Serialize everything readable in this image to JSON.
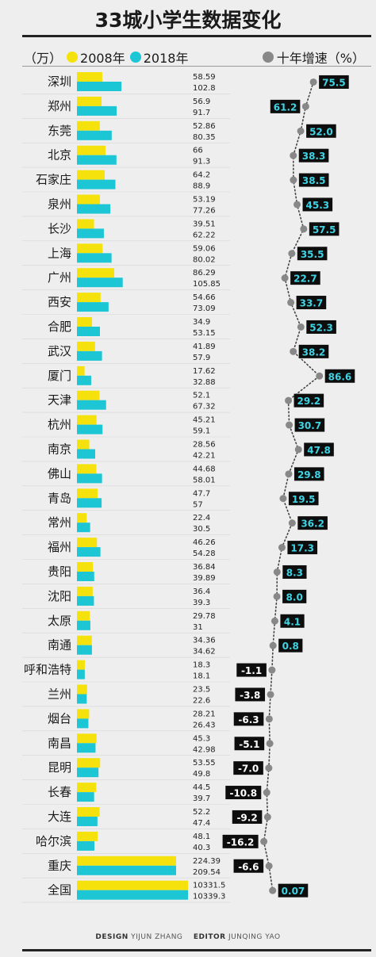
{
  "title": "33城小学生数据变化",
  "legend": {
    "unit": "（万）",
    "series2008": "2008年",
    "series2018": "2018年",
    "growth": "十年增速（%）"
  },
  "footer": {
    "design_label": "DESIGN",
    "design_name": "YIJUN ZHANG",
    "editor_label": "EDITOR",
    "editor_name": "JUNQING YAO"
  },
  "colors": {
    "yellow": "#f5e20c",
    "cyan": "#1cc6d4",
    "dot": "#888888",
    "label_bg": "#0d0d0d",
    "label_text_pos": "#3fd3e3",
    "label_text_neg": "#ffffff"
  },
  "chart_data": {
    "type": "bar",
    "categories": [
      "深圳",
      "郑州",
      "东莞",
      "北京",
      "石家庄",
      "泉州",
      "长沙",
      "上海",
      "广州",
      "西安",
      "合肥",
      "武汉",
      "厦门",
      "天津",
      "杭州",
      "南京",
      "佛山",
      "青岛",
      "常州",
      "福州",
      "贵阳",
      "沈阳",
      "太原",
      "南通",
      "呼和浩特",
      "兰州",
      "烟台",
      "南昌",
      "昆明",
      "长春",
      "大连",
      "哈尔滨",
      "重庆",
      "全国"
    ],
    "series": [
      {
        "name": "2008年",
        "values": [
          "58.59",
          "56.9",
          "52.86",
          "66",
          "64.2",
          "53.19",
          "39.51",
          "59.06",
          "86.29",
          "54.66",
          "34.9",
          "41.89",
          "17.62",
          "52.1",
          "45.21",
          "28.56",
          "44.68",
          "47.7",
          "22.4",
          "46.26",
          "36.84",
          "36.4",
          "29.78",
          "34.36",
          "18.3",
          "23.5",
          "28.21",
          "45.3",
          "53.55",
          "44.5",
          "52.2",
          "48.1",
          "224.39",
          "10331.5"
        ]
      },
      {
        "name": "2018年",
        "values": [
          "102.8",
          "91.7",
          "80.35",
          "91.3",
          "88.9",
          "77.26",
          "62.22",
          "80.02",
          "105.85",
          "73.09",
          "53.15",
          "57.9",
          "32.88",
          "67.32",
          "59.1",
          "42.21",
          "58.01",
          "57",
          "30.5",
          "54.28",
          "39.89",
          "39.3",
          "31",
          "34.62",
          "18.1",
          "22.6",
          "26.43",
          "42.98",
          "49.8",
          "39.7",
          "47.4",
          "40.3",
          "209.54",
          "10339.3"
        ]
      },
      {
        "name": "十年增速",
        "values": [
          "75.5",
          "61.2",
          "52.0",
          "38.3",
          "38.5",
          "45.3",
          "57.5",
          "35.5",
          "22.7",
          "33.7",
          "52.3",
          "38.2",
          "86.6",
          "29.2",
          "30.7",
          "47.8",
          "29.8",
          "19.5",
          "36.2",
          "17.3",
          "8.3",
          "8.0",
          "4.1",
          "0.8",
          "-1.1",
          "-3.8",
          "-6.3",
          "-5.1",
          "-7.0",
          "-10.8",
          "-9.2",
          "-16.2",
          "-6.6",
          "0.07"
        ]
      }
    ],
    "bar_scale_note": "",
    "growth_axis": [
      -20,
      90
    ]
  }
}
